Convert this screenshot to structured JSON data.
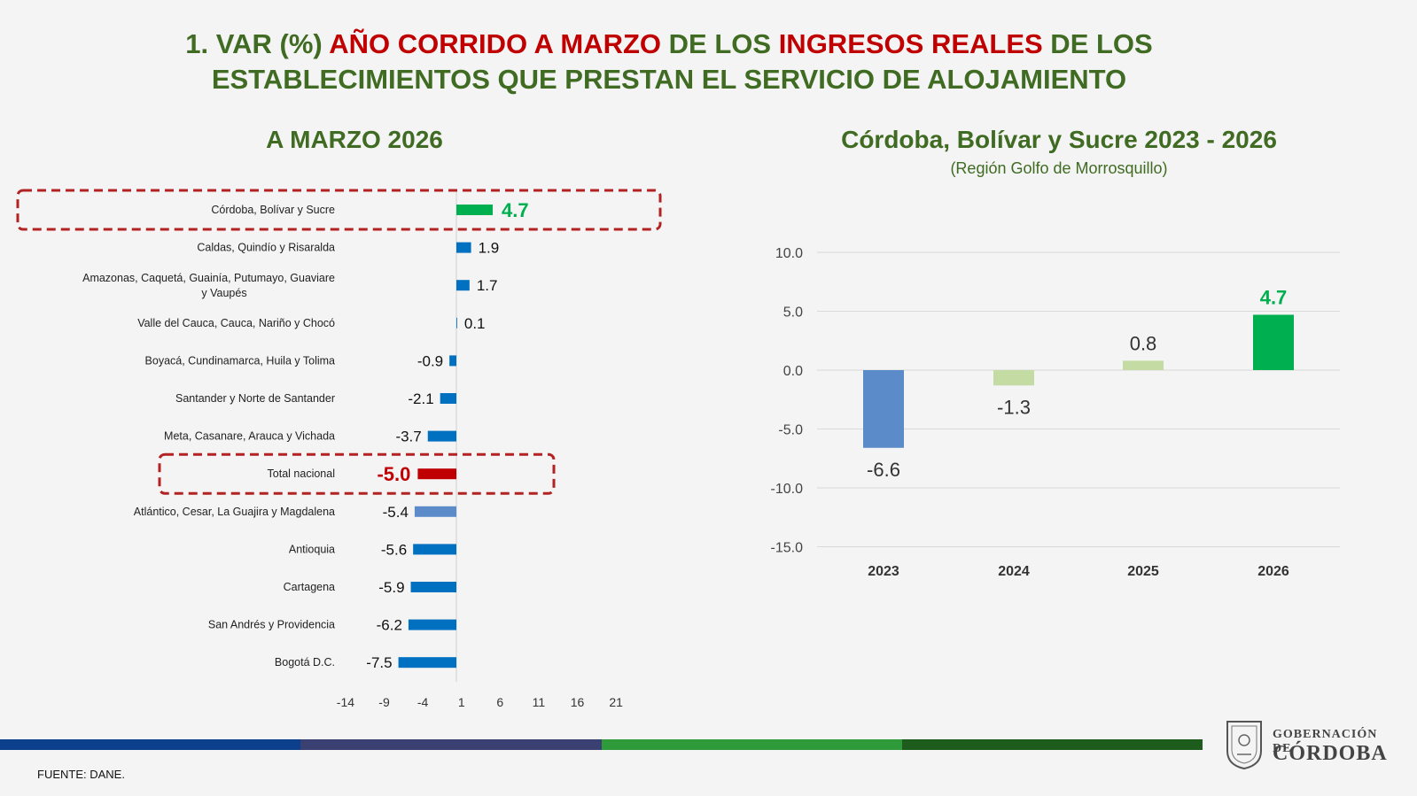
{
  "header": {
    "title_line1_part1": "1. VAR (%) ",
    "title_line1_part2": "AÑO CORRIDO A MARZO",
    "title_line1_part3": " DE LOS ",
    "title_line1_part4": "INGRESOS REALES",
    "title_line1_part5": " DE LOS",
    "title_line2": "ESTABLECIMIENTOS QUE PRESTAN EL SERVICIO DE ALOJAMIENTO"
  },
  "left_title": "A MARZO 2026",
  "right_title": "Córdoba, Bolívar y Sucre 2023 - 2026",
  "right_subtitle": "(Región Golfo de Morrosquillo)",
  "footer": {
    "source": "FUENTE: DANE."
  },
  "logo": {
    "line1": "GOBERNACIÓN DE",
    "line2": "CÓRDOBA"
  },
  "chart_data": [
    {
      "type": "bar",
      "orientation": "horizontal",
      "title": "A MARZO 2026",
      "categories": [
        "Córdoba, Bolívar y Sucre",
        "Caldas, Quindío y Risaralda",
        "Amazonas, Caquetá, Guainía, Putumayo, Guaviare y Vaupés",
        "Valle del Cauca, Cauca, Nariño y Chocó",
        "Boyacá, Cundinamarca, Huila y Tolima",
        "Santander y Norte de Santander",
        "Meta, Casanare, Arauca y Vichada",
        "Total nacional",
        "Atlántico, Cesar, La Guajira y Magdalena",
        "Antioquia",
        "Cartagena",
        "San Andrés y Providencia",
        "Bogotá D.C."
      ],
      "values": [
        4.7,
        1.9,
        1.7,
        0.1,
        -0.9,
        -2.1,
        -3.7,
        -5.0,
        -5.4,
        -5.6,
        -5.9,
        -6.2,
        -7.5
      ],
      "value_labels": [
        "4.7",
        "1.9",
        "1.7",
        "0.1",
        "-0.9",
        "-2.1",
        "-3.7",
        "-5.0",
        "-5.4",
        "-5.6",
        "-5.9",
        "-6.2",
        "-7.5"
      ],
      "colors": [
        "#00b050",
        "#0070c0",
        "#0070c0",
        "#0070c0",
        "#0070c0",
        "#0070c0",
        "#0070c0",
        "#c00000",
        "#5b8cc9",
        "#0070c0",
        "#0070c0",
        "#0070c0",
        "#0070c0"
      ],
      "highlighted": [
        "Córdoba, Bolívar y Sucre",
        "Total nacional"
      ],
      "xticks": [
        -14,
        -9,
        -4,
        1,
        6,
        11,
        16,
        21
      ],
      "xlim": [
        -14,
        21
      ]
    },
    {
      "type": "bar",
      "title": "Córdoba, Bolívar y Sucre 2023 - 2026",
      "subtitle": "(Región Golfo de Morrosquillo)",
      "categories": [
        "2023",
        "2024",
        "2025",
        "2026"
      ],
      "values": [
        -6.6,
        -1.3,
        0.8,
        4.7
      ],
      "value_labels": [
        "-6.6",
        "-1.3",
        "0.8",
        "4.7"
      ],
      "colors": [
        "#5b8cc9",
        "#c5dba4",
        "#c5dba4",
        "#00b050"
      ],
      "yticks": [
        "10.0",
        "5.0",
        "0.0",
        "-5.0",
        "-10.0",
        "-15.0"
      ],
      "ylim": [
        -15,
        10
      ],
      "grid": true
    }
  ],
  "palette": {
    "title_green": "#3f6b22",
    "title_red": "#c00000",
    "highlight_border": "#b22222",
    "bar_stripe": [
      "#0c3f8c",
      "#3a4172",
      "#2e9a3a",
      "#1e5c1e"
    ]
  }
}
